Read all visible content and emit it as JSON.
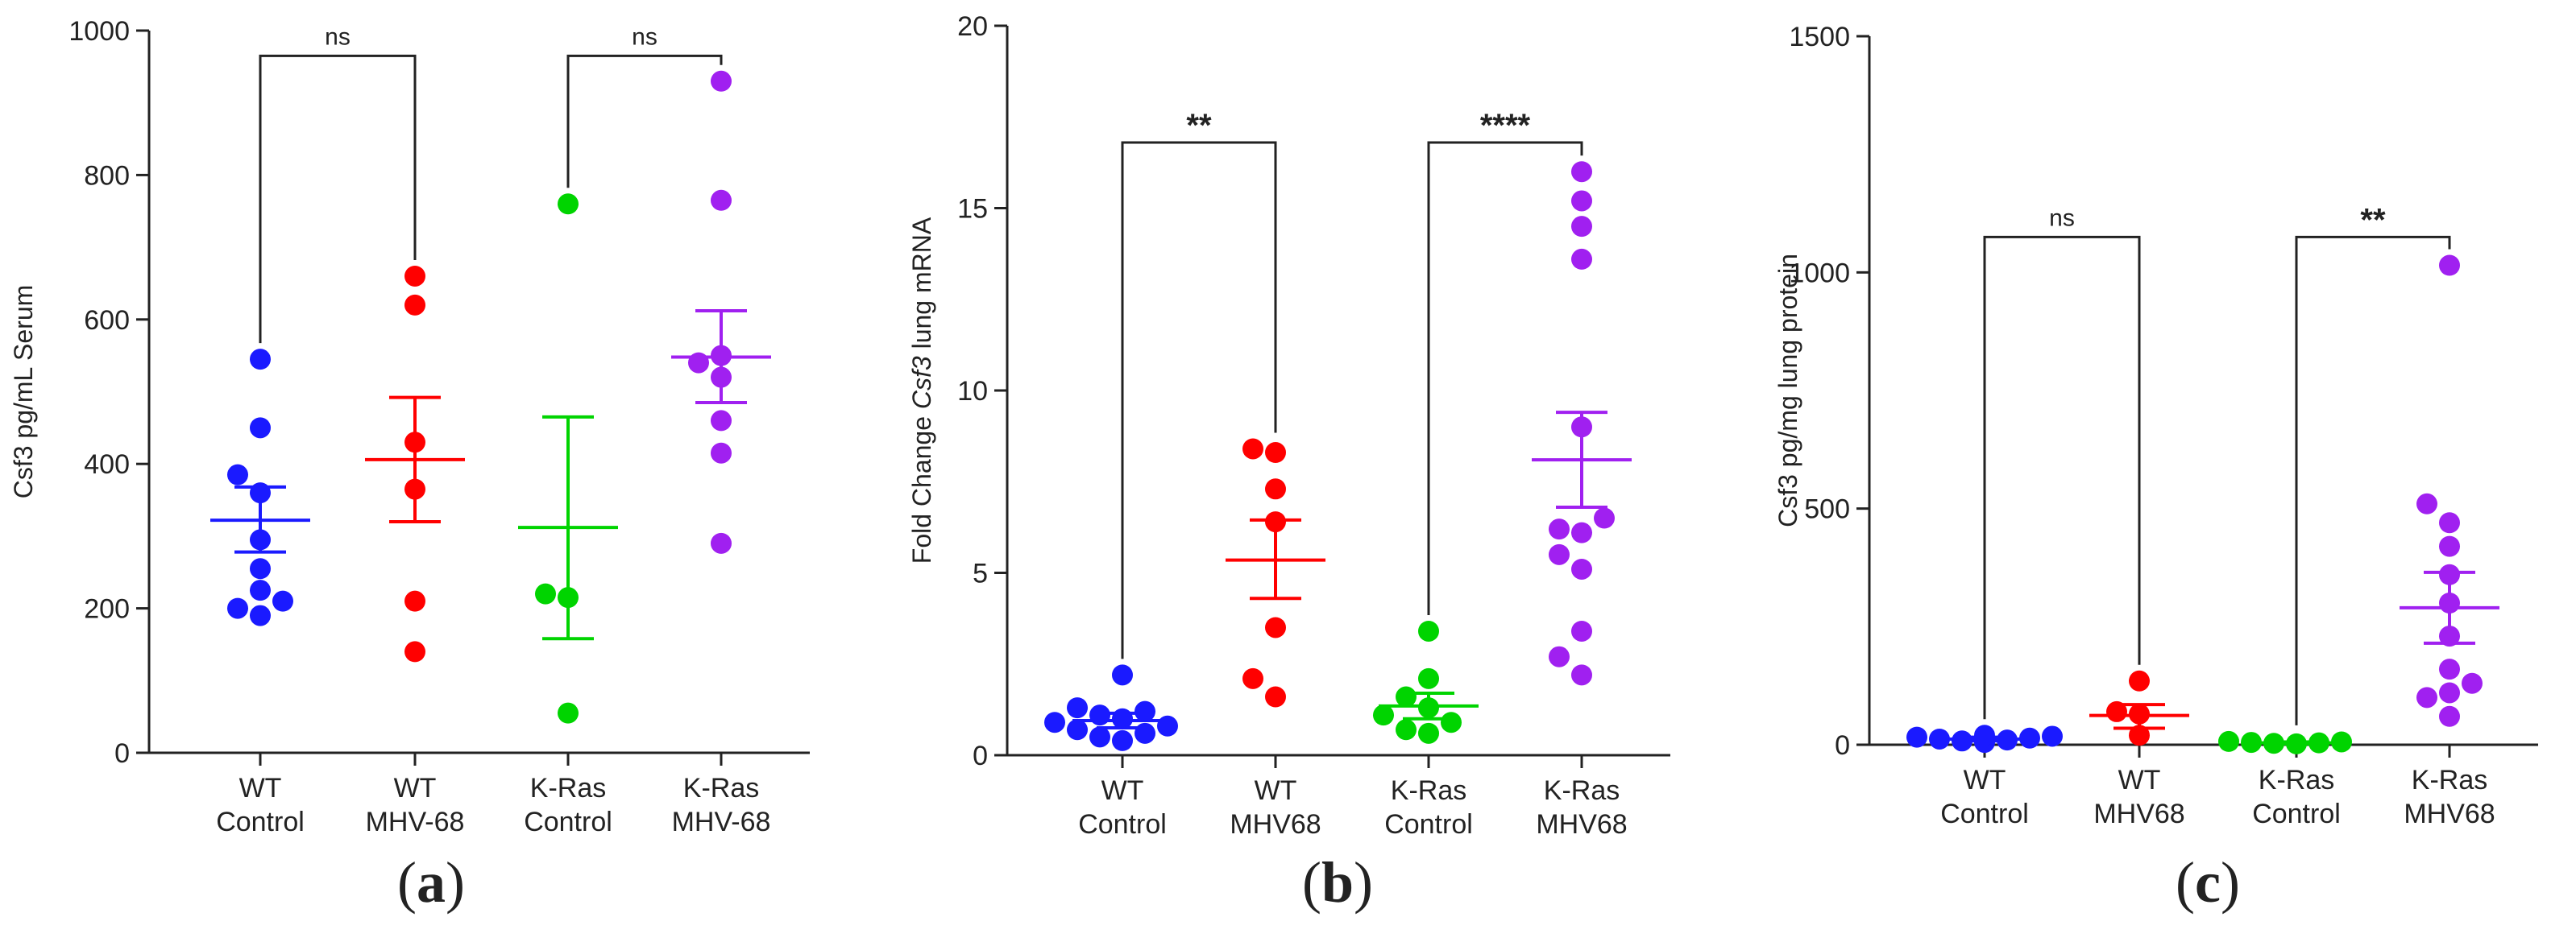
{
  "chart_data": [
    {
      "id": "a",
      "type": "scatter",
      "panel_label": "a",
      "ylabel": "Csf3 pg/mL Serum",
      "ylabel_parts": [
        {
          "t": "Csf3 pg/mL Serum",
          "i": false
        }
      ],
      "ylim": [
        0,
        1000
      ],
      "yticks": [
        0,
        200,
        400,
        600,
        800,
        1000
      ],
      "groups": [
        {
          "label": [
            "WT",
            "Control"
          ],
          "color": "#1a1aff",
          "values": [
            190,
            200,
            210,
            225,
            255,
            295,
            360,
            385,
            450,
            545
          ],
          "mean": 322,
          "sem_low": 278,
          "sem_high": 368
        },
        {
          "label": [
            "WT",
            "MHV-68"
          ],
          "color": "#ff0000",
          "values": [
            140,
            210,
            365,
            430,
            620,
            660
          ],
          "mean": 406,
          "sem_low": 320,
          "sem_high": 492
        },
        {
          "label": [
            "K-Ras",
            "Control"
          ],
          "color": "#00d400",
          "values": [
            55,
            215,
            220,
            760
          ],
          "mean": 312,
          "sem_low": 158,
          "sem_high": 465
        },
        {
          "label": [
            "K-Ras",
            "MHV-68"
          ],
          "color": "#a020f0",
          "values": [
            290,
            415,
            460,
            520,
            540,
            550,
            765,
            930
          ],
          "mean": 548,
          "sem_low": 485,
          "sem_high": 612
        }
      ],
      "comparisons": [
        {
          "from": 0,
          "to": 1,
          "label": "ns",
          "y": 965
        },
        {
          "from": 2,
          "to": 3,
          "label": "ns",
          "y": 965
        }
      ]
    },
    {
      "id": "b",
      "type": "scatter",
      "panel_label": "b",
      "ylabel": "Fold Change Csf3 lung mRNA",
      "ylabel_parts": [
        {
          "t": "Fold Change ",
          "i": false
        },
        {
          "t": "Csf3",
          "i": true
        },
        {
          "t": " lung mRNA",
          "i": false
        }
      ],
      "ylim": [
        0,
        20
      ],
      "yticks": [
        0,
        5,
        10,
        15,
        20
      ],
      "groups": [
        {
          "label": [
            "WT",
            "Control"
          ],
          "color": "#1a1aff",
          "values": [
            0.4,
            0.5,
            0.6,
            0.7,
            0.8,
            0.9,
            1.0,
            1.1,
            1.2,
            1.3,
            2.2
          ],
          "mean": 0.95,
          "sem_low": 0.75,
          "sem_high": 1.15
        },
        {
          "label": [
            "WT",
            "MHV68"
          ],
          "color": "#ff0000",
          "values": [
            1.6,
            2.1,
            3.5,
            6.4,
            7.3,
            8.3,
            8.4
          ],
          "mean": 5.35,
          "sem_low": 4.3,
          "sem_high": 6.45
        },
        {
          "label": [
            "K-Ras",
            "Control"
          ],
          "color": "#00d400",
          "values": [
            0.6,
            0.7,
            0.9,
            1.1,
            1.3,
            1.6,
            2.1,
            3.4
          ],
          "mean": 1.35,
          "sem_low": 1.0,
          "sem_high": 1.7
        },
        {
          "label": [
            "K-Ras",
            "MHV68"
          ],
          "color": "#a020f0",
          "values": [
            2.2,
            2.7,
            3.4,
            5.1,
            5.5,
            6.1,
            6.2,
            6.5,
            9.0,
            13.6,
            14.5,
            15.2,
            16.0
          ],
          "mean": 8.1,
          "sem_low": 6.8,
          "sem_high": 9.4
        }
      ],
      "comparisons": [
        {
          "from": 0,
          "to": 1,
          "label": "**",
          "y": 16.8
        },
        {
          "from": 2,
          "to": 3,
          "label": "****",
          "y": 16.8
        }
      ]
    },
    {
      "id": "c",
      "type": "scatter",
      "panel_label": "c",
      "ylabel": "Csf3 pg/mg lung protein",
      "ylabel_parts": [
        {
          "t": "Csf3 pg/mg lung protein",
          "i": false
        }
      ],
      "ylim": [
        0,
        1500
      ],
      "yticks": [
        0,
        500,
        1000,
        1500
      ],
      "groups": [
        {
          "label": [
            "WT",
            "Control"
          ],
          "color": "#1a1aff",
          "values": [
            5,
            8,
            10,
            12,
            14,
            16,
            18,
            20
          ],
          "mean": 12,
          "sem_low": 8,
          "sem_high": 16
        },
        {
          "label": [
            "WT",
            "MHV68"
          ],
          "color": "#ff0000",
          "values": [
            20,
            65,
            70,
            135
          ],
          "mean": 62,
          "sem_low": 35,
          "sem_high": 85
        },
        {
          "label": [
            "K-Ras",
            "Control"
          ],
          "color": "#00d400",
          "values": [
            2,
            3,
            4,
            5,
            6,
            7
          ],
          "mean": 4,
          "sem_low": 2,
          "sem_high": 6
        },
        {
          "label": [
            "K-Ras",
            "MHV68"
          ],
          "color": "#a020f0",
          "values": [
            60,
            100,
            110,
            130,
            160,
            230,
            300,
            360,
            420,
            470,
            510,
            1015
          ],
          "mean": 290,
          "sem_low": 215,
          "sem_high": 365
        }
      ],
      "comparisons": [
        {
          "from": 0,
          "to": 1,
          "label": "ns",
          "y": 1075
        },
        {
          "from": 2,
          "to": 3,
          "label": "**",
          "y": 1075
        }
      ]
    }
  ]
}
